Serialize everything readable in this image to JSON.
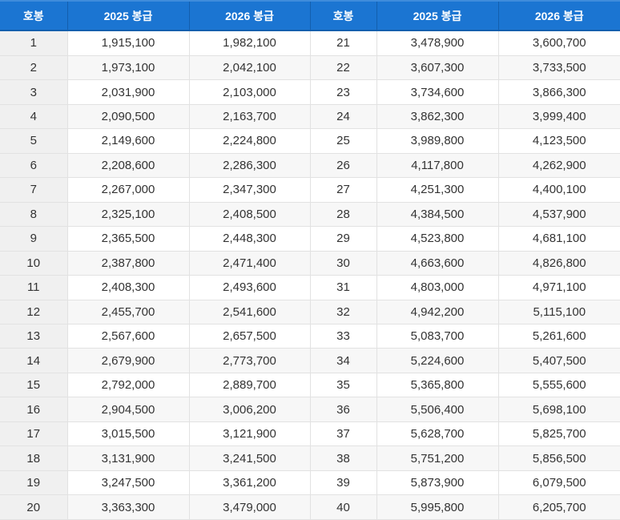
{
  "colors": {
    "header_bg": "#1b75d2",
    "header_border_dark": "#135fae",
    "header_border_light": "#3f8cdb",
    "header_text": "#ffffff",
    "row_bg": "#ffffff",
    "row_alt_bg": "#f7f7f7",
    "first_col_bg": "#f0f0f0",
    "cell_border": "#e2e2e2",
    "cell_text": "#333333"
  },
  "table": {
    "headers": [
      "호봉",
      "2025 봉급",
      "2026 봉급",
      "호봉",
      "2025 봉급",
      "2026 봉급"
    ],
    "rows": [
      [
        "1",
        "1,915,100",
        "1,982,100",
        "21",
        "3,478,900",
        "3,600,700"
      ],
      [
        "2",
        "1,973,100",
        "2,042,100",
        "22",
        "3,607,300",
        "3,733,500"
      ],
      [
        "3",
        "2,031,900",
        "2,103,000",
        "23",
        "3,734,600",
        "3,866,300"
      ],
      [
        "4",
        "2,090,500",
        "2,163,700",
        "24",
        "3,862,300",
        "3,999,400"
      ],
      [
        "5",
        "2,149,600",
        "2,224,800",
        "25",
        "3,989,800",
        "4,123,500"
      ],
      [
        "6",
        "2,208,600",
        "2,286,300",
        "26",
        "4,117,800",
        "4,262,900"
      ],
      [
        "7",
        "2,267,000",
        "2,347,300",
        "27",
        "4,251,300",
        "4,400,100"
      ],
      [
        "8",
        "2,325,100",
        "2,408,500",
        "28",
        "4,384,500",
        "4,537,900"
      ],
      [
        "9",
        "2,365,500",
        "2,448,300",
        "29",
        "4,523,800",
        "4,681,100"
      ],
      [
        "10",
        "2,387,800",
        "2,471,400",
        "30",
        "4,663,600",
        "4,826,800"
      ],
      [
        "11",
        "2,408,300",
        "2,493,600",
        "31",
        "4,803,000",
        "4,971,100"
      ],
      [
        "12",
        "2,455,700",
        "2,541,600",
        "32",
        "4,942,200",
        "5,115,100"
      ],
      [
        "13",
        "2,567,600",
        "2,657,500",
        "33",
        "5,083,700",
        "5,261,600"
      ],
      [
        "14",
        "2,679,900",
        "2,773,700",
        "34",
        "5,224,600",
        "5,407,500"
      ],
      [
        "15",
        "2,792,000",
        "2,889,700",
        "35",
        "5,365,800",
        "5,555,600"
      ],
      [
        "16",
        "2,904,500",
        "3,006,200",
        "36",
        "5,506,400",
        "5,698,100"
      ],
      [
        "17",
        "3,015,500",
        "3,121,900",
        "37",
        "5,628,700",
        "5,825,700"
      ],
      [
        "18",
        "3,131,900",
        "3,241,500",
        "38",
        "5,751,200",
        "5,856,500"
      ],
      [
        "19",
        "3,247,500",
        "3,361,200",
        "39",
        "5,873,900",
        "6,079,500"
      ],
      [
        "20",
        "3,363,300",
        "3,479,000",
        "40",
        "5,995,800",
        "6,205,700"
      ]
    ]
  }
}
